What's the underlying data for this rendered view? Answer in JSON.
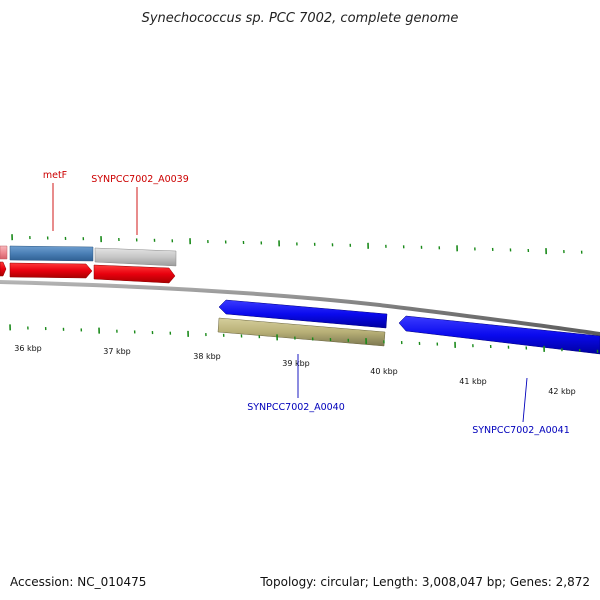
{
  "title": "Synechococcus sp. PCC 7002, complete genome",
  "footer": {
    "accession": "Accession: NC_010475",
    "summary": "Topology: circular; Length: 3,008,047 bp; Genes: 2,872"
  },
  "scale_labels": [
    "36 kbp",
    "37 kbp",
    "38 kbp",
    "39 kbp",
    "40 kbp",
    "41 kbp",
    "42 kbp"
  ],
  "genes": {
    "red_labels": [
      "metF",
      "SYNPCC7002_A0039"
    ],
    "blue_labels": [
      "SYNPCC7002_A0040",
      "SYNPCC7002_A0041"
    ]
  },
  "colors": {
    "forward_strand": "#e8000e",
    "reverse_strand": "#0a0aee",
    "gene_feature": "#4a7fb5",
    "gene_feature_light": "#c8c8c8",
    "rna_feature": "#b8b077",
    "tick": "#1a8a1a",
    "backbone": "#8a8a8a",
    "red_label": "#cc0000",
    "blue_label": "#0000bb"
  }
}
